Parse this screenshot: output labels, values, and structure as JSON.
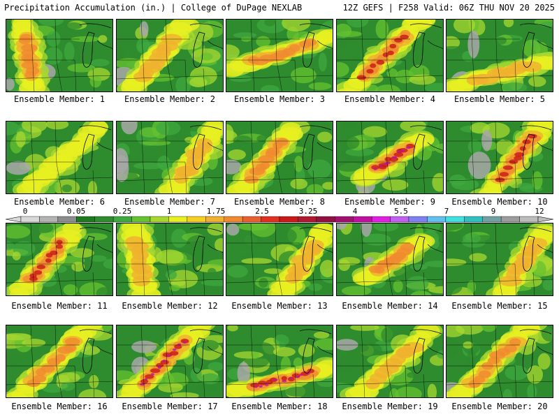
{
  "header": {
    "title_left": "Precipitation Accumulation (in.) | College of DuPage NEXLAB",
    "title_right": "12Z GEFS | F258 Valid: 06Z THU NOV 20 2025"
  },
  "members": [
    {
      "label": "Ensemble Member: 1",
      "core": "west",
      "intensity": 3
    },
    {
      "label": "Ensemble Member: 2",
      "core": "southwest",
      "intensity": 2
    },
    {
      "label": "Ensemble Member: 3",
      "core": "band-north",
      "intensity": 3
    },
    {
      "label": "Ensemble Member: 4",
      "core": "diagonal",
      "intensity": 4
    },
    {
      "label": "Ensemble Member: 5",
      "core": "south",
      "intensity": 2
    },
    {
      "label": "Ensemble Member: 6",
      "core": "weak",
      "intensity": 1
    },
    {
      "label": "Ensemble Member: 7",
      "core": "east",
      "intensity": 2
    },
    {
      "label": "Ensemble Member: 8",
      "core": "southwest",
      "intensity": 3
    },
    {
      "label": "Ensemble Member: 9",
      "core": "center",
      "intensity": 5
    },
    {
      "label": "Ensemble Member: 10",
      "core": "northeast",
      "intensity": 4
    },
    {
      "label": "Ensemble Member: 11",
      "core": "southwest",
      "intensity": 4
    },
    {
      "label": "Ensemble Member: 12",
      "core": "west",
      "intensity": 2
    },
    {
      "label": "Ensemble Member: 13",
      "core": "east",
      "intensity": 2
    },
    {
      "label": "Ensemble Member: 14",
      "core": "center",
      "intensity": 3
    },
    {
      "label": "Ensemble Member: 15",
      "core": "east",
      "intensity": 2
    },
    {
      "label": "Ensemble Member: 16",
      "core": "diagonal",
      "intensity": 3
    },
    {
      "label": "Ensemble Member: 17",
      "core": "diagonal",
      "intensity": 5
    },
    {
      "label": "Ensemble Member: 18",
      "core": "south",
      "intensity": 5
    },
    {
      "label": "Ensemble Member: 19",
      "core": "weak",
      "intensity": 2
    },
    {
      "label": "Ensemble Member: 20",
      "core": "diagonal",
      "intensity": 3
    }
  ],
  "colorbar": {
    "ticks": [
      "0",
      "0.05",
      "0.25",
      "1",
      "1.75",
      "2.5",
      "3.25",
      "4",
      "5.5",
      "7",
      "9",
      "12"
    ],
    "colors": [
      "#d8d8d8",
      "#b4b4b4",
      "#8c8c8c",
      "#1f7a1f",
      "#2e8b2e",
      "#3fa83f",
      "#66c230",
      "#a8d830",
      "#e8f020",
      "#f5d020",
      "#f0b030",
      "#f08a30",
      "#e86030",
      "#e03020",
      "#c81818",
      "#b01830",
      "#901040",
      "#a01070",
      "#c010a0",
      "#e020e0",
      "#c060f0",
      "#8080f0",
      "#60c0f0",
      "#40e0e0",
      "#30c0c0",
      "#70a0a0",
      "#9c9c9c",
      "#bcbcbc"
    ]
  }
}
